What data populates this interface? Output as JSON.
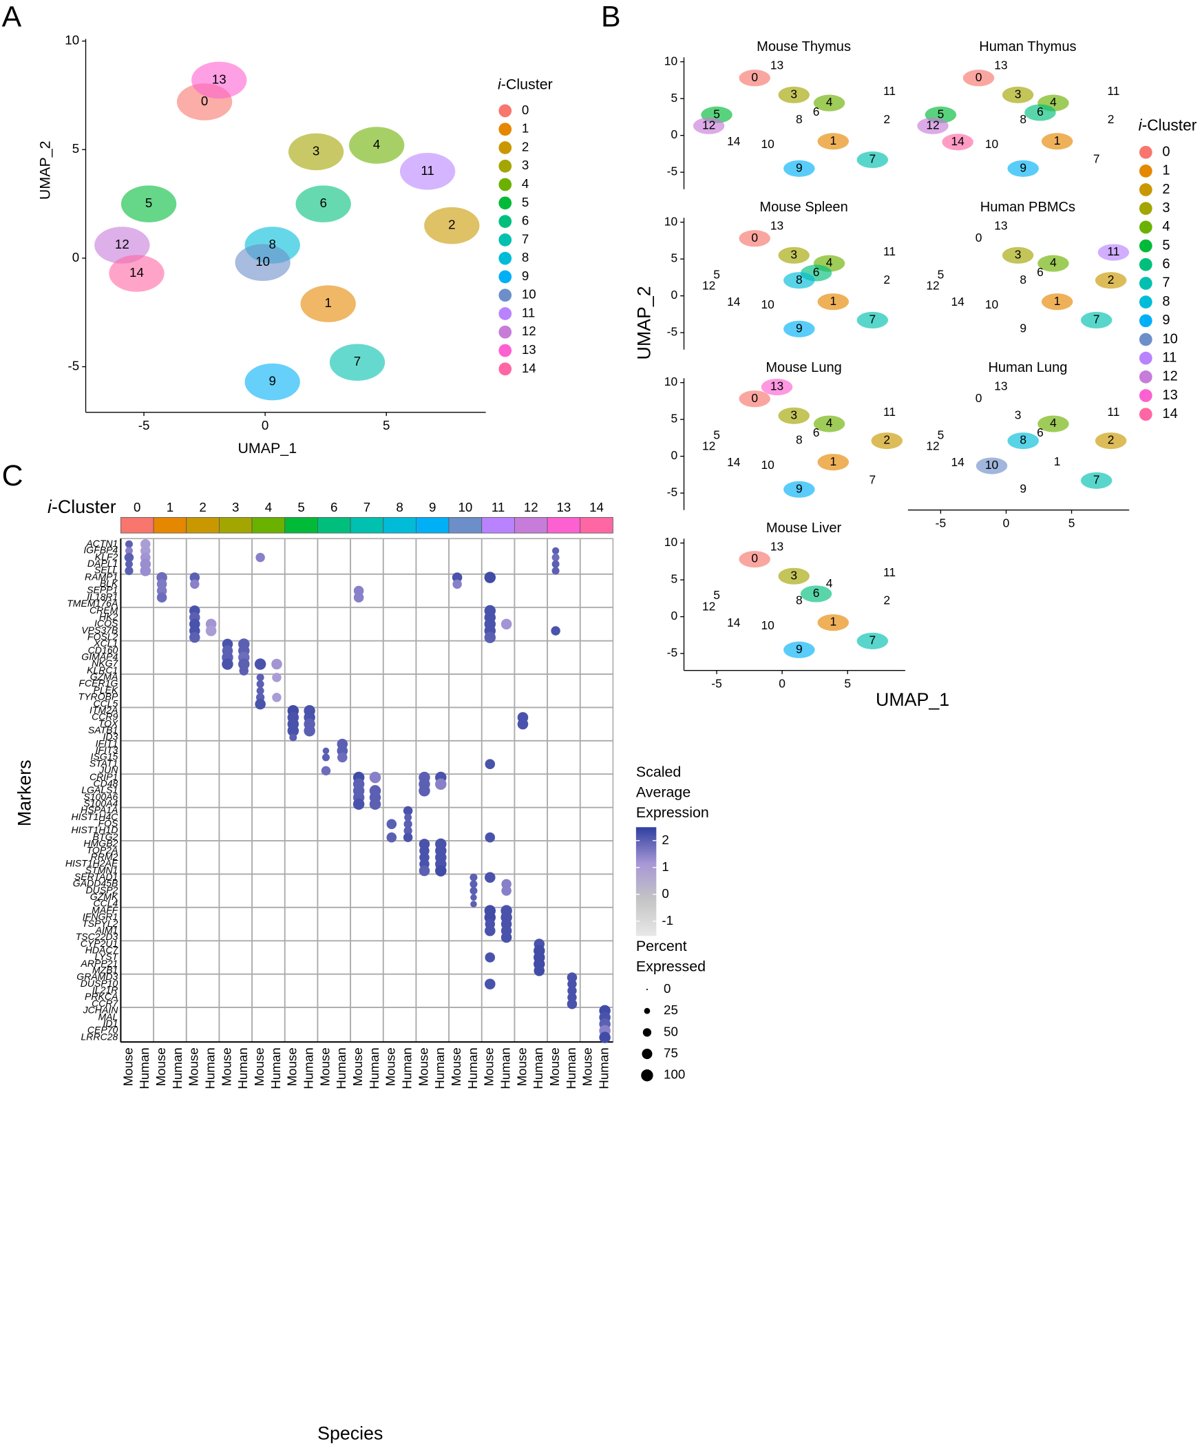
{
  "panels": {
    "a": "A",
    "b": "B",
    "c": "C"
  },
  "cluster_legend": {
    "title_italic": "i",
    "title": "-Cluster",
    "names": [
      "0",
      "1",
      "2",
      "3",
      "4",
      "5",
      "6",
      "7",
      "8",
      "9",
      "10",
      "11",
      "12",
      "13",
      "14"
    ],
    "colors": [
      "#F8766D",
      "#E58700",
      "#C99800",
      "#A3A500",
      "#6BB100",
      "#00BA38",
      "#00BF7D",
      "#00C0AF",
      "#00BCD8",
      "#00B0F6",
      "#6D8FC9",
      "#B983FF",
      "#C77CDA",
      "#FD61D1",
      "#FF67A4"
    ]
  },
  "umap_a": {
    "type": "scatter",
    "xlabel": "UMAP_1",
    "ylabel": "UMAP_2",
    "xlim": [
      -7.4,
      9.1
    ],
    "ylim": [
      -7.1,
      10.1
    ],
    "xticks": [
      -5,
      0,
      5
    ],
    "yticks": [
      -5,
      0,
      5,
      10
    ],
    "centroids": {
      "x": [
        -2.5,
        2.6,
        7.7,
        2.1,
        4.6,
        -4.8,
        2.4,
        3.8,
        0.3,
        0.3,
        -0.1,
        6.7,
        -5.9,
        -1.9,
        -5.3
      ],
      "y": [
        7.2,
        -2.1,
        1.5,
        4.9,
        5.2,
        2.5,
        2.5,
        -4.8,
        0.6,
        -5.7,
        -0.2,
        4.0,
        0.6,
        8.2,
        -0.7
      ]
    }
  },
  "umap_b": {
    "type": "scatter",
    "xlabel": "UMAP_1",
    "ylabel": "UMAP_2",
    "xlim": [
      -7.5,
      9.4
    ],
    "ylim": [
      -7.3,
      10.6
    ],
    "xticks": [
      -5,
      0,
      5
    ],
    "yticks": [
      -5,
      0,
      5,
      10
    ],
    "label_x": [
      -2.1,
      3.9,
      8.0,
      0.9,
      3.6,
      -5.0,
      2.6,
      6.9,
      1.3,
      1.3,
      -1.1,
      8.2,
      -5.6,
      -0.4,
      -3.7
    ],
    "label_y": [
      7.8,
      -0.8,
      2.1,
      5.5,
      4.4,
      2.8,
      3.1,
      -3.3,
      2.1,
      -4.5,
      -1.3,
      5.9,
      1.3,
      9.4,
      -0.9
    ],
    "panels": [
      {
        "title": "Mouse Thymus",
        "clusters": [
          0,
          3,
          4,
          5,
          12,
          1,
          7,
          9
        ]
      },
      {
        "title": "Human Thymus",
        "clusters": [
          0,
          5,
          12,
          14,
          3,
          4,
          6,
          1,
          9
        ]
      },
      {
        "title": "Mouse Spleen",
        "clusters": [
          0,
          3,
          4,
          6,
          8,
          1,
          7,
          9
        ]
      },
      {
        "title": "Human PBMCs",
        "clusters": [
          4,
          11,
          3,
          2,
          1,
          7
        ]
      },
      {
        "title": "Mouse Lung",
        "clusters": [
          13,
          0,
          3,
          4,
          2,
          1,
          9
        ]
      },
      {
        "title": "Human Lung",
        "clusters": [
          10,
          8,
          7,
          4,
          2
        ]
      },
      {
        "title": "Mouse Liver",
        "clusters": [
          0,
          3,
          1,
          6,
          7,
          9
        ]
      }
    ]
  },
  "dot_plot": {
    "type": "dot",
    "ylabel": "Markers",
    "xlabel": "Species",
    "header_italic": "i",
    "header": "-Cluster",
    "species": [
      "Mouse",
      "Human"
    ],
    "genes": [
      "ACTN1",
      "IGFBP4",
      "KLF2",
      "DAPL1",
      "SELL",
      "RAMP1",
      "BLK",
      "SEPP1",
      "IL18R1",
      "TMEM176A",
      "CREM",
      "HK2",
      "ICOS",
      "VPS37B",
      "FOSL2",
      "XCL1",
      "CD160",
      "GIMAP4",
      "NKG7",
      "KLRC1",
      "GZMA",
      "FCER1G",
      "PLEK",
      "TYROBP",
      "CCL5",
      "ITM2A",
      "CCR9",
      "TOX",
      "SATB1",
      "ID3",
      "IFIT1",
      "IFIT3",
      "ISG15",
      "STAT1",
      "JUN",
      "CRIP1",
      "CD48",
      "LGALS1",
      "S100A6",
      "S100A4",
      "HSPA1A",
      "HIST1H4C",
      "FOS",
      "HIST1H1D",
      "BTG2",
      "HMGB2",
      "TOP2A",
      "RRM2",
      "HIST1H2AE",
      "STMN1",
      "SERTAD1",
      "GADD45B",
      "DUSP2",
      "GZMK",
      "CCL4",
      "MAFF",
      "IFNGR1",
      "TSPYL2",
      "AIM1",
      "TSC22D3",
      "CYP2U1",
      "HDAC7",
      "LYST",
      "ARPP21",
      "MZB1",
      "GRAMD3",
      "DUSP10",
      "IL21R",
      "PRKCA",
      "CCR7",
      "JCHAIN",
      "MAL",
      "ID1",
      "CEP70",
      "LRRC28"
    ],
    "dots": [
      [
        0,
        0,
        40,
        2
      ],
      [
        1,
        0,
        40,
        1.5
      ],
      [
        2,
        0,
        60,
        2
      ],
      [
        3,
        0,
        40,
        2
      ],
      [
        4,
        0,
        50,
        2
      ],
      [
        0,
        1,
        70,
        1
      ],
      [
        1,
        1,
        70,
        1
      ],
      [
        2,
        1,
        70,
        1.2
      ],
      [
        3,
        1,
        80,
        1.3
      ],
      [
        4,
        1,
        80,
        1.3
      ],
      [
        1,
        26,
        35,
        2
      ],
      [
        2,
        26,
        40,
        1.8
      ],
      [
        3,
        26,
        40,
        2
      ],
      [
        4,
        26,
        40,
        2
      ],
      [
        2,
        8,
        60,
        1.5
      ],
      [
        5,
        2,
        80,
        1.8
      ],
      [
        6,
        2,
        70,
        1.6
      ],
      [
        7,
        2,
        70,
        1.6
      ],
      [
        8,
        2,
        70,
        1.8
      ],
      [
        5,
        4,
        70,
        2
      ],
      [
        6,
        4,
        60,
        1.5
      ],
      [
        5,
        20,
        70,
        2.2
      ],
      [
        6,
        20,
        60,
        1.5
      ],
      [
        5,
        22,
        90,
        2.3
      ],
      [
        7,
        14,
        70,
        1.5
      ],
      [
        8,
        14,
        70,
        1.5
      ],
      [
        10,
        4,
        80,
        2.2
      ],
      [
        11,
        4,
        80,
        2
      ],
      [
        12,
        4,
        80,
        2.2
      ],
      [
        13,
        4,
        80,
        2.2
      ],
      [
        14,
        4,
        80,
        2
      ],
      [
        12,
        5,
        80,
        1.2
      ],
      [
        13,
        5,
        80,
        1
      ],
      [
        10,
        22,
        90,
        2.2
      ],
      [
        11,
        22,
        90,
        2.2
      ],
      [
        12,
        22,
        90,
        2.2
      ],
      [
        13,
        22,
        90,
        2.2
      ],
      [
        14,
        22,
        90,
        2
      ],
      [
        12,
        23,
        80,
        1.2
      ],
      [
        13,
        26,
        60,
        2.2
      ],
      [
        15,
        6,
        80,
        2.2
      ],
      [
        16,
        6,
        80,
        2
      ],
      [
        17,
        6,
        90,
        2
      ],
      [
        18,
        6,
        90,
        2.2
      ],
      [
        15,
        7,
        90,
        2
      ],
      [
        16,
        7,
        90,
        2
      ],
      [
        17,
        7,
        90,
        1.8
      ],
      [
        18,
        7,
        90,
        2
      ],
      [
        19,
        7,
        60,
        2
      ],
      [
        18,
        8,
        90,
        2.2
      ],
      [
        18,
        9,
        80,
        1.2
      ],
      [
        20,
        8,
        40,
        2
      ],
      [
        21,
        8,
        40,
        2
      ],
      [
        22,
        8,
        40,
        2
      ],
      [
        23,
        8,
        50,
        2
      ],
      [
        24,
        8,
        80,
        2.2
      ],
      [
        20,
        9,
        60,
        1
      ],
      [
        23,
        9,
        60,
        1
      ],
      [
        25,
        10,
        90,
        2.3
      ],
      [
        26,
        10,
        90,
        2.2
      ],
      [
        27,
        10,
        90,
        2.2
      ],
      [
        28,
        10,
        90,
        2.2
      ],
      [
        29,
        10,
        40,
        2
      ],
      [
        25,
        11,
        90,
        2.2
      ],
      [
        26,
        11,
        90,
        2.2
      ],
      [
        27,
        11,
        90,
        2
      ],
      [
        28,
        11,
        90,
        2
      ],
      [
        26,
        24,
        80,
        2.2
      ],
      [
        27,
        24,
        80,
        2.2
      ],
      [
        31,
        12,
        30,
        2
      ],
      [
        32,
        12,
        40,
        2
      ],
      [
        34,
        12,
        60,
        1.8
      ],
      [
        30,
        13,
        80,
        2
      ],
      [
        31,
        13,
        80,
        2
      ],
      [
        32,
        13,
        70,
        1.8
      ],
      [
        33,
        22,
        70,
        2.2
      ],
      [
        35,
        14,
        90,
        2.3
      ],
      [
        36,
        14,
        90,
        2
      ],
      [
        37,
        14,
        90,
        2
      ],
      [
        38,
        14,
        90,
        2
      ],
      [
        39,
        14,
        90,
        2.2
      ],
      [
        35,
        15,
        90,
        1.5
      ],
      [
        37,
        15,
        90,
        2
      ],
      [
        38,
        15,
        90,
        2
      ],
      [
        39,
        15,
        90,
        2
      ],
      [
        35,
        18,
        90,
        2
      ],
      [
        36,
        18,
        90,
        2
      ],
      [
        37,
        18,
        90,
        2
      ],
      [
        35,
        19,
        90,
        2.2
      ],
      [
        36,
        19,
        90,
        1.5
      ],
      [
        40,
        17,
        60,
        2.2
      ],
      [
        41,
        17,
        40,
        2
      ],
      [
        42,
        17,
        50,
        2
      ],
      [
        43,
        17,
        50,
        2
      ],
      [
        44,
        17,
        60,
        2.2
      ],
      [
        42,
        16,
        70,
        2
      ],
      [
        44,
        16,
        70,
        2
      ],
      [
        44,
        22,
        70,
        2.2
      ],
      [
        45,
        18,
        80,
        2.2
      ],
      [
        46,
        18,
        70,
        2.2
      ],
      [
        47,
        18,
        70,
        2.2
      ],
      [
        48,
        18,
        70,
        2.2
      ],
      [
        49,
        18,
        80,
        2
      ],
      [
        45,
        19,
        90,
        2.2
      ],
      [
        46,
        19,
        90,
        2.2
      ],
      [
        47,
        19,
        90,
        2.2
      ],
      [
        48,
        19,
        90,
        2.2
      ],
      [
        49,
        19,
        90,
        2.3
      ],
      [
        50,
        21,
        40,
        2
      ],
      [
        51,
        21,
        40,
        2
      ],
      [
        52,
        21,
        40,
        2
      ],
      [
        53,
        21,
        30,
        2
      ],
      [
        54,
        21,
        30,
        2
      ],
      [
        50,
        22,
        80,
        2.2
      ],
      [
        51,
        23,
        70,
        1.5
      ],
      [
        52,
        23,
        70,
        1.5
      ],
      [
        55,
        22,
        90,
        2.3
      ],
      [
        56,
        22,
        90,
        2.3
      ],
      [
        57,
        22,
        70,
        2.2
      ],
      [
        58,
        22,
        80,
        2.2
      ],
      [
        55,
        23,
        90,
        2.2
      ],
      [
        56,
        23,
        90,
        2.2
      ],
      [
        57,
        23,
        80,
        2.2
      ],
      [
        58,
        23,
        80,
        2.2
      ],
      [
        59,
        23,
        80,
        2.2
      ],
      [
        60,
        25,
        80,
        2.2
      ],
      [
        61,
        25,
        90,
        2.3
      ],
      [
        62,
        25,
        90,
        2.3
      ],
      [
        63,
        25,
        90,
        2.3
      ],
      [
        64,
        25,
        80,
        2.3
      ],
      [
        62,
        22,
        70,
        2.2
      ],
      [
        65,
        27,
        70,
        2.2
      ],
      [
        66,
        27,
        60,
        2.2
      ],
      [
        67,
        27,
        60,
        2.2
      ],
      [
        68,
        27,
        60,
        2.2
      ],
      [
        69,
        27,
        70,
        2.2
      ],
      [
        66,
        22,
        80,
        2.2
      ],
      [
        70,
        29,
        90,
        2.3
      ],
      [
        71,
        29,
        90,
        2.2
      ],
      [
        72,
        29,
        90,
        2
      ],
      [
        73,
        29,
        90,
        1.5
      ],
      [
        74,
        29,
        90,
        2.3
      ]
    ],
    "color_legend": {
      "title": [
        "Scaled",
        "Average",
        "Expression"
      ],
      "ticks": [
        2,
        1,
        0,
        -1
      ],
      "lim": [
        -1.55,
        2.5
      ],
      "colors": [
        "#e8e8e8",
        "#c4c4c4",
        "#a797d6",
        "#2f3f9f"
      ]
    },
    "size_legend": {
      "title": [
        "Percent",
        "Expressed"
      ],
      "values": [
        0,
        25,
        50,
        75,
        100
      ]
    }
  }
}
